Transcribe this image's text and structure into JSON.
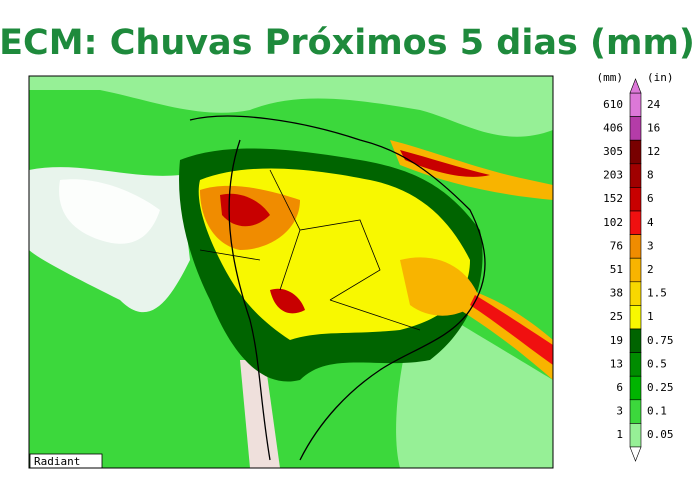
{
  "title": "ECM: Chuvas Próximos 5 dias (mm)",
  "map": {
    "watermark": "Radiant"
  },
  "legend": {
    "units_mm": "(mm)",
    "units_in": "(in)",
    "levels": [
      {
        "mm": 610,
        "in": 24,
        "color": "#dc78d8"
      },
      {
        "mm": 406,
        "in": 16,
        "color": "#b43ca8"
      },
      {
        "mm": 305,
        "in": 12,
        "color": "#780000"
      },
      {
        "mm": 203,
        "in": 8,
        "color": "#a00000"
      },
      {
        "mm": 152,
        "in": 6,
        "color": "#c80000"
      },
      {
        "mm": 102,
        "in": 4,
        "color": "#f01010"
      },
      {
        "mm": 76,
        "in": 3,
        "color": "#f08c00"
      },
      {
        "mm": 51,
        "in": 2,
        "color": "#f8b400"
      },
      {
        "mm": 38,
        "in": 1.5,
        "color": "#f8d800"
      },
      {
        "mm": 25,
        "in": 1,
        "color": "#f8f800"
      },
      {
        "mm": 19,
        "in": 0.75,
        "color": "#006400"
      },
      {
        "mm": 13,
        "in": 0.5,
        "color": "#008c00"
      },
      {
        "mm": 6,
        "in": 0.25,
        "color": "#00b400"
      },
      {
        "mm": 3,
        "in": 0.1,
        "color": "#3cd83c"
      },
      {
        "mm": 1,
        "in": 0.05,
        "color": "#96f096"
      }
    ]
  }
}
